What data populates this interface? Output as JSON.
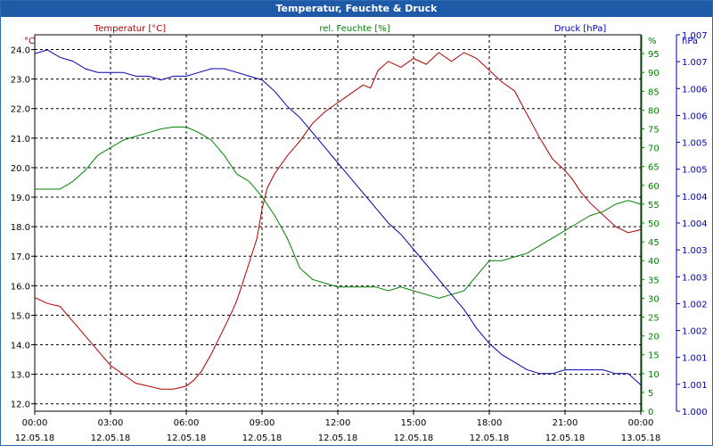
{
  "window": {
    "title": "Temperatur, Feuchte & Druck"
  },
  "chart_data": {
    "type": "line",
    "title": "Temperatur, Feuchte & Druck",
    "grid": true,
    "x_ticks": [
      {
        "hours": 0,
        "time": "00:00",
        "date": "12.05.18"
      },
      {
        "hours": 3,
        "time": "03:00",
        "date": "12.05.18"
      },
      {
        "hours": 6,
        "time": "06:00",
        "date": "12.05.18"
      },
      {
        "hours": 9,
        "time": "09:00",
        "date": "12.05.18"
      },
      {
        "hours": 12,
        "time": "12:00",
        "date": "12.05.18"
      },
      {
        "hours": 15,
        "time": "15:00",
        "date": "12.05.18"
      },
      {
        "hours": 18,
        "time": "18:00",
        "date": "12.05.18"
      },
      {
        "hours": 21,
        "time": "21:00",
        "date": "12.05.18"
      },
      {
        "hours": 24,
        "time": "00:00",
        "date": "13.05.18"
      }
    ],
    "xlim": [
      0,
      24
    ],
    "axes": {
      "temperature": {
        "unit": "°C",
        "series_label": "Temperatur [°C]",
        "color": "#b00000",
        "ylim": [
          11.75,
          24.5
        ],
        "ticks": [
          12.0,
          13.0,
          14.0,
          15.0,
          16.0,
          17.0,
          18.0,
          19.0,
          20.0,
          21.0,
          22.0,
          23.0,
          24.0
        ],
        "tick_labels": [
          "12.0",
          "13.0",
          "14.0",
          "15.0",
          "16.0",
          "17.0",
          "18.0",
          "19.0",
          "20.0",
          "21.0",
          "22.0",
          "23.0",
          "24.0"
        ]
      },
      "humidity": {
        "unit": "%",
        "series_label": "rel. Feuchte [%]",
        "color": "#008000",
        "ylim": [
          0,
          100
        ],
        "ticks": [
          0,
          5,
          10,
          15,
          20,
          25,
          30,
          35,
          40,
          45,
          50,
          55,
          60,
          65,
          70,
          75,
          80,
          85,
          90,
          95
        ],
        "tick_labels": [
          "0",
          "5",
          "10",
          "15",
          "20",
          "25",
          "30",
          "35",
          "40",
          "45",
          "50",
          "55",
          "60",
          "65",
          "70",
          "75",
          "80",
          "85",
          "90",
          "95"
        ]
      },
      "pressure": {
        "unit": "hPa",
        "series_label": "Druck [hPa]",
        "color": "#0000b0",
        "ylim": [
          0,
          100
        ],
        "ticks": [
          0,
          10,
          20,
          30,
          40,
          50,
          60,
          70,
          80,
          90,
          100
        ],
        "tick_labels": [
          "1.000",
          "1.001",
          "1.001",
          "1.002",
          "1.002",
          "1.003",
          "1.003",
          "1.004",
          "1.004",
          "1.005",
          "1.005",
          "1.006",
          "1.006",
          "1.007",
          "1.007"
        ],
        "tick_label_positions": [
          0,
          7.14,
          14.29,
          21.43,
          28.57,
          35.71,
          42.86,
          50,
          57.14,
          64.29,
          71.43,
          78.57,
          85.71,
          92.86,
          100
        ]
      }
    },
    "series": [
      {
        "name": "Temperatur [°C]",
        "axis": "temperature",
        "color": "#b00000",
        "x": [
          0,
          0.5,
          1,
          1.5,
          2,
          2.5,
          3,
          3.5,
          4,
          4.5,
          5,
          5.5,
          6,
          6.3,
          6.6,
          7,
          7.4,
          7.8,
          8,
          8.2,
          8.5,
          8.8,
          9,
          9.2,
          9.5,
          10,
          10.5,
          11,
          11.5,
          12,
          12.5,
          13,
          13.3,
          13.6,
          14,
          14.5,
          15,
          15.5,
          16,
          16.5,
          17,
          17.5,
          18,
          18.5,
          19,
          19.5,
          20,
          20.5,
          21,
          21.3,
          21.6,
          22,
          22.5,
          23,
          23.5,
          24
        ],
        "y": [
          15.6,
          15.4,
          15.3,
          14.8,
          14.3,
          13.8,
          13.3,
          13.0,
          12.7,
          12.6,
          12.5,
          12.5,
          12.6,
          12.8,
          13.1,
          13.7,
          14.4,
          15.1,
          15.5,
          16.0,
          16.8,
          17.6,
          18.6,
          19.3,
          19.8,
          20.4,
          20.9,
          21.5,
          21.9,
          22.2,
          22.5,
          22.8,
          22.7,
          23.3,
          23.6,
          23.4,
          23.7,
          23.5,
          23.9,
          23.6,
          23.9,
          23.7,
          23.3,
          22.9,
          22.6,
          21.8,
          21.0,
          20.3,
          19.9,
          19.6,
          19.2,
          18.8,
          18.4,
          18.0,
          17.8,
          17.9
        ]
      },
      {
        "name": "rel. Feuchte [%]",
        "axis": "humidity",
        "color": "#008000",
        "x": [
          0,
          0.5,
          1,
          1.5,
          2,
          2.5,
          3,
          3.5,
          4,
          4.5,
          5,
          5.5,
          6,
          6.5,
          7,
          7.5,
          8,
          8.5,
          9,
          9.5,
          10,
          10.5,
          11,
          11.5,
          12,
          12.5,
          13,
          13.5,
          14,
          14.5,
          15,
          15.5,
          16,
          16.5,
          17,
          17.5,
          18,
          18.5,
          19,
          19.5,
          20,
          20.5,
          21,
          21.5,
          22,
          22.5,
          23,
          23.5,
          24
        ],
        "y": [
          59,
          59,
          59,
          61,
          64,
          68,
          70,
          72,
          73,
          74,
          75,
          75.5,
          75.5,
          74,
          72,
          68,
          63,
          61,
          57,
          52,
          46,
          38,
          35,
          34,
          33,
          33,
          33,
          33,
          32,
          33,
          32,
          31,
          30,
          31,
          32,
          36,
          40,
          40,
          41,
          42,
          44,
          46,
          48,
          50,
          52,
          53,
          55,
          56,
          55
        ]
      },
      {
        "name": "Druck [hPa]",
        "axis": "pressure",
        "color": "#0000b0",
        "x": [
          0,
          0.5,
          1,
          1.5,
          2,
          2.5,
          3,
          3.5,
          4,
          4.5,
          5,
          5.5,
          6,
          6.5,
          7,
          7.5,
          8,
          8.5,
          9,
          9.5,
          10,
          10.5,
          11,
          11.5,
          12,
          12.5,
          13,
          13.5,
          14,
          14.5,
          15,
          15.5,
          16,
          16.5,
          17,
          17.5,
          18,
          18.5,
          19,
          19.5,
          20,
          20.5,
          21,
          21.5,
          22,
          22.5,
          23,
          23.5,
          24
        ],
        "y": [
          95,
          96,
          94,
          93,
          91,
          90,
          90,
          90,
          89,
          89,
          88,
          89,
          89,
          90,
          91,
          91,
          90,
          89,
          88,
          85,
          81,
          78,
          74,
          70,
          66,
          62,
          58,
          54,
          50,
          47,
          43,
          39,
          35,
          31,
          27,
          22,
          18,
          15,
          13,
          11,
          10,
          10,
          11,
          11,
          11,
          11,
          10,
          10,
          7
        ]
      }
    ]
  }
}
